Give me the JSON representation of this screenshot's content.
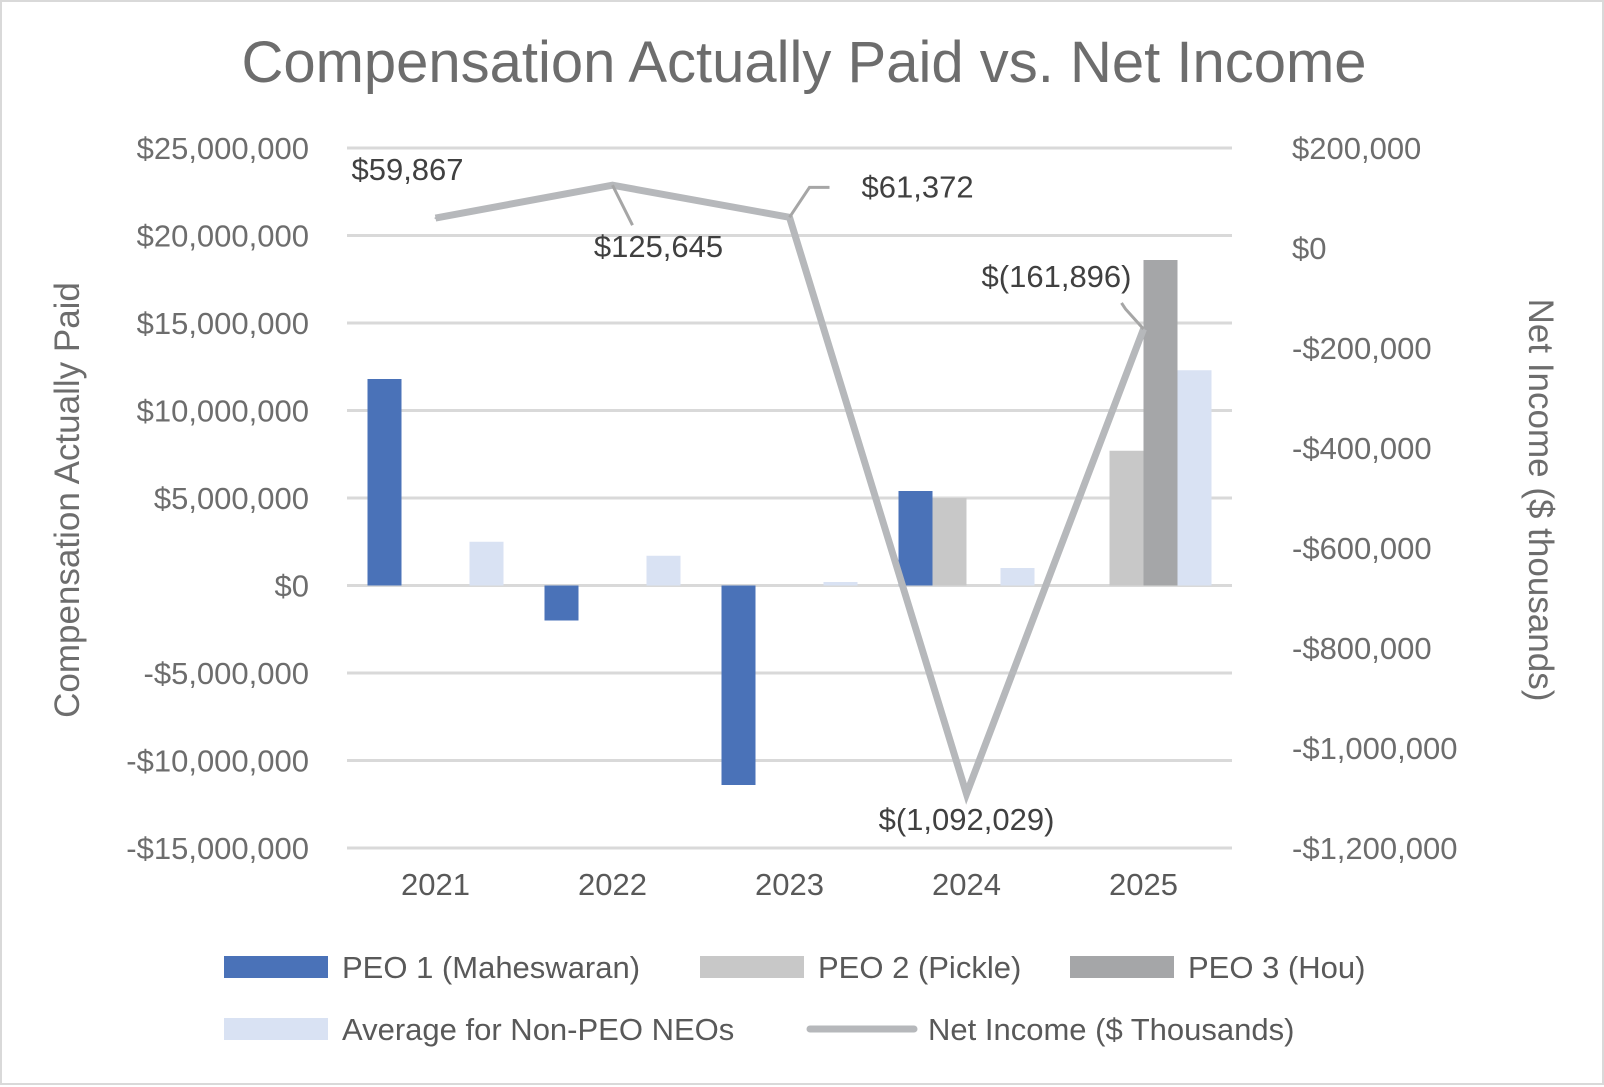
{
  "chart_data": {
    "type": "bar",
    "title": "Compensation Actually Paid vs. Net Income",
    "categories": [
      "2021",
      "2022",
      "2023",
      "2024",
      "2025"
    ],
    "y_left": {
      "label": "Compensation Actually Paid",
      "ylim": [
        -15000000,
        25000000
      ],
      "ticks": [
        25000000,
        20000000,
        15000000,
        10000000,
        5000000,
        0,
        -5000000,
        -10000000,
        -15000000
      ],
      "tick_labels": [
        "$25,000,000",
        "$20,000,000",
        "$15,000,000",
        "$10,000,000",
        "$5,000,000",
        "$0",
        "-$5,000,000",
        "-$10,000,000",
        "-$15,000,000"
      ]
    },
    "y_right": {
      "label": "Net Income ($ thousands)",
      "ylim": [
        -1200000,
        200000
      ],
      "ticks": [
        200000,
        0,
        -200000,
        -400000,
        -600000,
        -800000,
        -1000000,
        -1200000
      ],
      "tick_labels": [
        "$200,000",
        "$0",
        "-$200,000",
        "-$400,000",
        "-$600,000",
        "-$800,000",
        "-$1,000,000",
        "-$1,200,000"
      ]
    },
    "series": [
      {
        "name": "PEO 1 (Maheswaran)",
        "type": "bar",
        "color": "#4a72b8",
        "values": [
          11800000,
          -2000000,
          -11400000,
          5400000,
          null
        ]
      },
      {
        "name": "PEO 2 (Pickle)",
        "type": "bar",
        "color": "#c8c8c8",
        "values": [
          null,
          null,
          null,
          5000000,
          7700000
        ]
      },
      {
        "name": "PEO 3 (Hou)",
        "type": "bar",
        "color": "#a5a6a8",
        "values": [
          null,
          null,
          null,
          null,
          18600000
        ]
      },
      {
        "name": "Average for Non-PEO NEOs",
        "type": "bar",
        "color": "#d9e2f3",
        "values": [
          2500000,
          1700000,
          200000,
          1000000,
          12300000
        ]
      },
      {
        "name": "Net Income ($ Thousands)",
        "type": "line",
        "axis": "right",
        "color": "#b6b8bb",
        "values": [
          59867,
          125645,
          61372,
          -1092029,
          -161896
        ]
      }
    ],
    "data_labels": [
      "$59,867",
      "$125,645",
      "$61,372",
      "$(1,092,029)",
      "$(161,896)"
    ],
    "grid": true,
    "legend": "bottom"
  }
}
